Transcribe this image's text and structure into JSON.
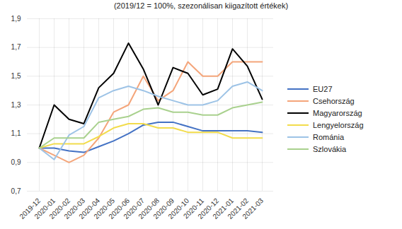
{
  "chart_data": {
    "type": "line",
    "title": "(2019/12 = 100%, szezonálisan kiigazított értékek)",
    "x": [
      "2019-12",
      "2020-01",
      "2020-02",
      "2020-03",
      "2020-04",
      "2020-05",
      "2020-06",
      "2020-07",
      "2020-08",
      "2020-09",
      "2020-10",
      "2020-11",
      "2020-12",
      "2021-01",
      "2021-02",
      "2021-03"
    ],
    "ylim": [
      0.7,
      1.9
    ],
    "yticks": [
      {
        "value": 0.7,
        "label": "0,7"
      },
      {
        "value": 0.9,
        "label": "0,9"
      },
      {
        "value": 1.1,
        "label": "1,1"
      },
      {
        "value": 1.3,
        "label": "1,3"
      },
      {
        "value": 1.5,
        "label": "1,5"
      },
      {
        "value": 1.7,
        "label": "1,7"
      },
      {
        "value": 1.9,
        "label": "1,9"
      }
    ],
    "grid": true,
    "legend": "right",
    "series": [
      {
        "name": "EU27",
        "color": "#4472c4",
        "values": [
          1.0,
          1.0,
          0.98,
          0.97,
          1.01,
          1.05,
          1.1,
          1.16,
          1.18,
          1.18,
          1.15,
          1.12,
          1.12,
          1.12,
          1.12,
          1.11
        ]
      },
      {
        "name": "Csehország",
        "color": "#f4a57a",
        "values": [
          1.0,
          0.95,
          0.9,
          0.95,
          1.07,
          1.25,
          1.3,
          1.5,
          1.33,
          1.4,
          1.6,
          1.5,
          1.5,
          1.6,
          1.6,
          1.6
        ]
      },
      {
        "name": "Magyarország",
        "color": "#000000",
        "values": [
          1.0,
          1.3,
          1.2,
          1.17,
          1.42,
          1.52,
          1.73,
          1.55,
          1.3,
          1.56,
          1.52,
          1.37,
          1.41,
          1.69,
          1.57,
          1.34
        ]
      },
      {
        "name": "Lengyelország",
        "color": "#f2dc4c",
        "values": [
          1.0,
          1.03,
          1.03,
          1.03,
          1.08,
          1.14,
          1.17,
          1.17,
          1.14,
          1.14,
          1.11,
          1.11,
          1.11,
          1.07,
          1.07,
          1.07
        ]
      },
      {
        "name": "Románia",
        "color": "#9dc3e6",
        "values": [
          1.0,
          0.92,
          1.09,
          1.15,
          1.35,
          1.4,
          1.43,
          1.4,
          1.36,
          1.33,
          1.3,
          1.3,
          1.33,
          1.43,
          1.46,
          1.4
        ]
      },
      {
        "name": "Szlovákia",
        "color": "#a9d18e",
        "values": [
          1.0,
          1.07,
          1.07,
          1.07,
          1.18,
          1.2,
          1.22,
          1.27,
          1.28,
          1.25,
          1.25,
          1.23,
          1.23,
          1.28,
          1.3,
          1.32
        ]
      }
    ]
  }
}
